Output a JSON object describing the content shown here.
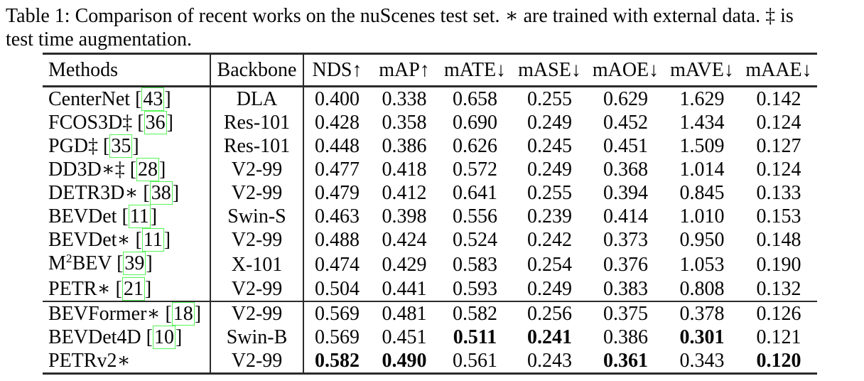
{
  "caption": {
    "lines": [
      "Table 1: Comparison of recent works on the nuScenes test set. ∗ are trained with external data. ‡ is",
      "test time augmentation."
    ]
  },
  "colors": {
    "rule": "#2b2b2b",
    "citation_box": "#55f555",
    "ink": "#050505",
    "paper": "#ffffff"
  },
  "table": {
    "columns": [
      {
        "key": "methods",
        "label": "Methods"
      },
      {
        "key": "backbone",
        "label": "Backbone"
      },
      {
        "key": "nds",
        "label": "NDS↑"
      },
      {
        "key": "map",
        "label": "mAP↑"
      },
      {
        "key": "mate",
        "label": "mATE↓"
      },
      {
        "key": "mase",
        "label": "mASE↓"
      },
      {
        "key": "maoe",
        "label": "mAOE↓"
      },
      {
        "key": "mave",
        "label": "mAVE↓"
      },
      {
        "key": "maae",
        "label": "mAAE↓"
      }
    ],
    "groups": [
      {
        "rows": [
          {
            "method": [
              {
                "text": "CenterNet"
              }
            ],
            "cite": "43",
            "backbone": "DLA",
            "values": [
              "0.400",
              "0.338",
              "0.658",
              "0.255",
              "0.629",
              "1.629",
              "0.142"
            ],
            "bold": []
          },
          {
            "method": [
              {
                "text": "FCOS3D‡"
              }
            ],
            "cite": "36",
            "backbone": "Res-101",
            "values": [
              "0.428",
              "0.358",
              "0.690",
              "0.249",
              "0.452",
              "1.434",
              "0.124"
            ],
            "bold": []
          },
          {
            "method": [
              {
                "text": "PGD‡"
              }
            ],
            "cite": "35",
            "backbone": "Res-101",
            "values": [
              "0.448",
              "0.386",
              "0.626",
              "0.245",
              "0.451",
              "1.509",
              "0.127"
            ],
            "bold": []
          },
          {
            "method": [
              {
                "text": "DD3D∗‡"
              }
            ],
            "cite": "28",
            "backbone": "V2-99",
            "values": [
              "0.477",
              "0.418",
              "0.572",
              "0.249",
              "0.368",
              "1.014",
              "0.124"
            ],
            "bold": []
          },
          {
            "method": [
              {
                "text": "DETR3D∗"
              }
            ],
            "cite": "38",
            "backbone": "V2-99",
            "values": [
              "0.479",
              "0.412",
              "0.641",
              "0.255",
              "0.394",
              "0.845",
              "0.133"
            ],
            "bold": []
          },
          {
            "method": [
              {
                "text": "BEVDet"
              }
            ],
            "cite": "11",
            "backbone": "Swin-S",
            "values": [
              "0.463",
              "0.398",
              "0.556",
              "0.239",
              "0.414",
              "1.010",
              "0.153"
            ],
            "bold": []
          },
          {
            "method": [
              {
                "text": "BEVDet∗"
              }
            ],
            "cite": "11",
            "backbone": "V2-99",
            "values": [
              "0.488",
              "0.424",
              "0.524",
              "0.242",
              "0.373",
              "0.950",
              "0.148"
            ],
            "bold": []
          },
          {
            "method": [
              {
                "text": "M"
              },
              {
                "text": "2",
                "sup": true
              },
              {
                "text": "BEV"
              }
            ],
            "cite": "39",
            "backbone": "X-101",
            "values": [
              "0.474",
              "0.429",
              "0.583",
              "0.254",
              "0.376",
              "1.053",
              "0.190"
            ],
            "bold": []
          },
          {
            "method": [
              {
                "text": "PETR∗"
              }
            ],
            "cite": "21",
            "backbone": "V2-99",
            "values": [
              "0.504",
              "0.441",
              "0.593",
              "0.249",
              "0.383",
              "0.808",
              "0.132"
            ],
            "bold": []
          }
        ]
      },
      {
        "rows": [
          {
            "method": [
              {
                "text": "BEVFormer∗"
              }
            ],
            "cite": "18",
            "backbone": "V2-99",
            "values": [
              "0.569",
              "0.481",
              "0.582",
              "0.256",
              "0.375",
              "0.378",
              "0.126"
            ],
            "bold": []
          },
          {
            "method": [
              {
                "text": "BEVDet4D"
              }
            ],
            "cite": "10",
            "backbone": "Swin-B",
            "values": [
              "0.569",
              "0.451",
              "0.511",
              "0.241",
              "0.386",
              "0.301",
              "0.121"
            ],
            "bold": [
              2,
              3,
              5
            ]
          },
          {
            "method": [
              {
                "text": "PETRv2∗"
              }
            ],
            "cite": null,
            "backbone": "V2-99",
            "values": [
              "0.582",
              "0.490",
              "0.561",
              "0.243",
              "0.361",
              "0.343",
              "0.120"
            ],
            "bold": [
              0,
              1,
              4,
              6
            ]
          }
        ]
      }
    ]
  }
}
